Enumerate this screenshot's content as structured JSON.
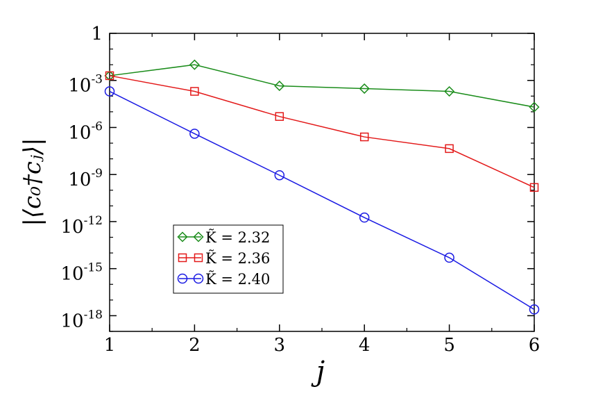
{
  "chart_data": {
    "type": "line",
    "title": "",
    "xlabel": "j",
    "ylabel": "|⟨c₀†cⱼ⟩|",
    "yscale": "log",
    "xlim": [
      1,
      6
    ],
    "ylim_log10": [
      -19,
      0
    ],
    "x_ticks": [
      "1",
      "2",
      "3",
      "4",
      "5",
      "6"
    ],
    "y_ticks": [
      {
        "base": "1",
        "exp": ""
      },
      {
        "base": "10",
        "exp": "-3"
      },
      {
        "base": "10",
        "exp": "-6"
      },
      {
        "base": "10",
        "exp": "-9"
      },
      {
        "base": "10",
        "exp": "-12"
      },
      {
        "base": "10",
        "exp": "-15"
      },
      {
        "base": "10",
        "exp": "-18"
      }
    ],
    "grid": false,
    "legend_position": "lower-left",
    "x": [
      1,
      2,
      3,
      4,
      5,
      6
    ],
    "series": [
      {
        "name": "K̃ = 2.32",
        "marker": "diamond",
        "color": "#1a8c1a",
        "values": [
          0.002,
          0.01,
          0.00045,
          0.0003,
          0.0002,
          2e-05
        ]
      },
      {
        "name": "K̃ = 2.36",
        "marker": "square",
        "color": "#e31a1a",
        "values": [
          0.002,
          0.0002,
          5e-06,
          2.5e-07,
          4.5e-08,
          1.5e-10
        ]
      },
      {
        "name": "K̃ = 2.40",
        "marker": "circle",
        "color": "#1a1ae3",
        "values": [
          0.0002,
          4e-07,
          9e-10,
          1.8e-12,
          5e-15,
          2.5e-18
        ]
      }
    ]
  }
}
